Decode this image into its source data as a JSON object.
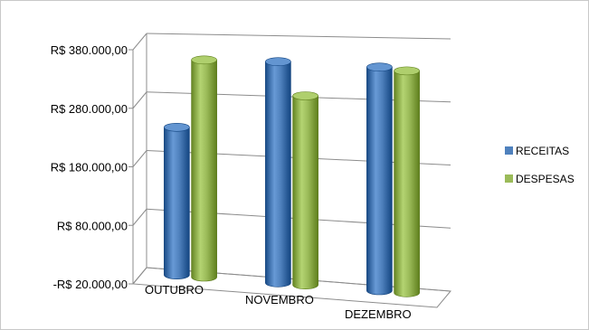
{
  "chart_data": {
    "type": "bar",
    "style": "3d-cylinder",
    "title": "",
    "xlabel": "",
    "ylabel": "",
    "categories": [
      "OUTUBRO",
      "NOVEMBRO",
      "DEZEMBRO"
    ],
    "series": [
      {
        "name": "RECEITAS",
        "color": "#4f81bd",
        "values": [
          230000,
          345000,
          340000
        ]
      },
      {
        "name": "DESPESAS",
        "color": "#9bbb59",
        "values": [
          345000,
          290000,
          335000
        ]
      }
    ],
    "yticks": [
      -20000,
      80000,
      180000,
      280000,
      380000
    ],
    "ytick_labels": [
      "-R$ 20.000,00",
      "R$ 80.000,00",
      "R$ 180.000,00",
      "R$ 280.000,00",
      "R$ 380.000,00"
    ],
    "ytick_label_colors": [
      "#ff0000",
      "#000000",
      "#000000",
      "#000000",
      "#000000"
    ],
    "ylim": [
      -20000,
      380000
    ],
    "grid": true,
    "legend": "right"
  }
}
